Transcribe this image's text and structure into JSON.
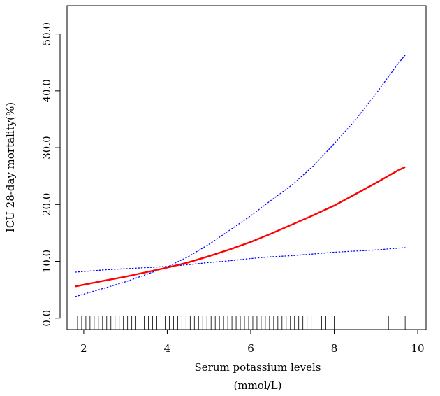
{
  "chart_data": {
    "type": "line",
    "xlabel": "Serum potassium levels",
    "xlabel_unit": "(mmol/L)",
    "ylabel": "ICU 28-day mortality(%)",
    "xlim": [
      1.6,
      10.2
    ],
    "ylim": [
      -2.0,
      55.0
    ],
    "x_ticks": [
      2,
      4,
      6,
      8,
      10
    ],
    "x_tick_labels": [
      "2",
      "4",
      "6",
      "8",
      "10"
    ],
    "y_ticks": [
      0,
      10,
      20,
      30,
      40,
      50
    ],
    "y_tick_labels": [
      "0.0",
      "10.0",
      "20.0",
      "30.0",
      "40.0",
      "50.0"
    ],
    "grid": false,
    "series": [
      {
        "role": "estimate",
        "style": "solid",
        "color": "#ff0000",
        "x": [
          1.8,
          2.5,
          3.0,
          3.5,
          4.0,
          4.5,
          5.0,
          5.5,
          6.0,
          6.5,
          7.0,
          7.5,
          8.0,
          8.5,
          9.0,
          9.5,
          9.7
        ],
        "y": [
          5.6,
          6.6,
          7.3,
          8.1,
          8.9,
          9.8,
          10.9,
          12.1,
          13.4,
          14.9,
          16.5,
          18.1,
          19.8,
          21.8,
          23.8,
          25.9,
          26.6
        ]
      },
      {
        "role": "upper-ci",
        "style": "dotted",
        "color": "#0000ff",
        "x": [
          1.8,
          2.5,
          3.0,
          3.5,
          4.0,
          4.5,
          5.0,
          5.5,
          6.0,
          6.5,
          7.0,
          7.5,
          8.0,
          8.5,
          9.0,
          9.5,
          9.7
        ],
        "y": [
          3.8,
          5.3,
          6.4,
          7.7,
          9.0,
          10.8,
          13.0,
          15.5,
          18.0,
          20.8,
          23.5,
          26.8,
          30.7,
          34.8,
          39.5,
          44.5,
          46.3
        ]
      },
      {
        "role": "lower-ci",
        "style": "dotted",
        "color": "#0000ff",
        "x": [
          1.8,
          2.5,
          3.0,
          3.5,
          4.0,
          4.5,
          5.0,
          5.5,
          6.0,
          6.5,
          7.0,
          7.5,
          8.0,
          8.5,
          9.0,
          9.5,
          9.7
        ],
        "y": [
          8.1,
          8.5,
          8.7,
          8.9,
          9.1,
          9.4,
          9.8,
          10.1,
          10.5,
          10.8,
          11.0,
          11.3,
          11.6,
          11.8,
          12.0,
          12.3,
          12.4
        ]
      }
    ],
    "rug": [
      1.85,
      1.95,
      2.05,
      2.15,
      2.25,
      2.35,
      2.45,
      2.55,
      2.65,
      2.75,
      2.85,
      2.95,
      3.05,
      3.15,
      3.25,
      3.35,
      3.45,
      3.55,
      3.65,
      3.75,
      3.85,
      3.95,
      4.05,
      4.15,
      4.25,
      4.35,
      4.45,
      4.55,
      4.65,
      4.75,
      4.85,
      4.95,
      5.05,
      5.15,
      5.25,
      5.35,
      5.45,
      5.55,
      5.65,
      5.75,
      5.85,
      5.95,
      6.05,
      6.15,
      6.25,
      6.35,
      6.45,
      6.55,
      6.65,
      6.75,
      6.85,
      6.95,
      7.05,
      7.15,
      7.25,
      7.35,
      7.45,
      7.7,
      7.8,
      7.9,
      8.0,
      9.3,
      9.7
    ]
  }
}
